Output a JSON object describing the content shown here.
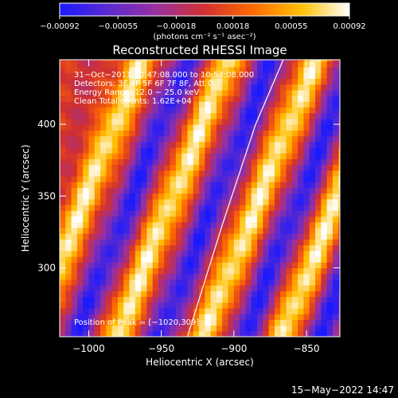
{
  "chart_data": {
    "type": "heatmap",
    "title": "Reconstructed RHESSI Image",
    "xlabel": "Heliocentric X (arcsec)",
    "ylabel": "Heliocentric Y (arcsec)",
    "xlim": [
      -1020,
      -827
    ],
    "ylim": [
      252,
      445
    ],
    "x_ticks": [
      -1000,
      -950,
      -900,
      -850
    ],
    "y_ticks": [
      300,
      350,
      400
    ],
    "x_tick_labels": [
      "−1000",
      "−950",
      "−900",
      "−850"
    ],
    "y_tick_labels": [
      "300",
      "350",
      "400"
    ],
    "colorbar": {
      "range": [
        -0.00092,
        0.00092
      ],
      "ticks": [
        -0.00092,
        -0.00055,
        -0.00018,
        0.00018,
        0.00055,
        0.00092
      ],
      "tick_labels": [
        "−0.00092",
        "−0.00055",
        "−0.00018",
        "0.00018",
        "0.00055",
        "0.00092"
      ],
      "units_label": "(photons cm⁻² s⁻¹ asec⁻²)",
      "colors": [
        "#1a1aff",
        "#5a2ad0",
        "#9a30a0",
        "#d03030",
        "#ff6a00",
        "#ffc000",
        "#ffffff"
      ]
    },
    "annotations": {
      "time": "31−Oct−2011 10:47:08.000 to 10:53:08.000",
      "detectors": "Detectors: 3F 4F 5F 6F 7F 8F, Att 0",
      "energy": "Energy Range: 12.0 − 25.0 keV",
      "clean": "Clean    Total counts: 1.62E+04",
      "peak": "Position of Peak = [−1020,309]"
    },
    "peak_position": [
      -1020,
      309
    ],
    "limb_line": [
      [
        -932,
        252
      ],
      [
        -908,
        330
      ],
      [
        -885,
        400
      ],
      [
        -866,
        445
      ]
    ],
    "stripes": [
      {
        "x_at_y250": -1042,
        "slope": 0.4,
        "sign": 1
      },
      {
        "x_at_y250": -1010,
        "slope": 0.4,
        "sign": -1
      },
      {
        "x_at_y250": -982,
        "slope": 0.4,
        "sign": 1
      },
      {
        "x_at_y250": -952,
        "slope": 0.4,
        "sign": -1
      },
      {
        "x_at_y250": -922,
        "slope": 0.4,
        "sign": 1
      },
      {
        "x_at_y250": -894,
        "slope": 0.4,
        "sign": -1
      },
      {
        "x_at_y250": -868,
        "slope": 0.4,
        "sign": 1
      },
      {
        "x_at_y250": -842,
        "slope": 0.4,
        "sign": -1
      }
    ]
  },
  "footer": {
    "timestamp": "15−May−2022 14:47"
  }
}
